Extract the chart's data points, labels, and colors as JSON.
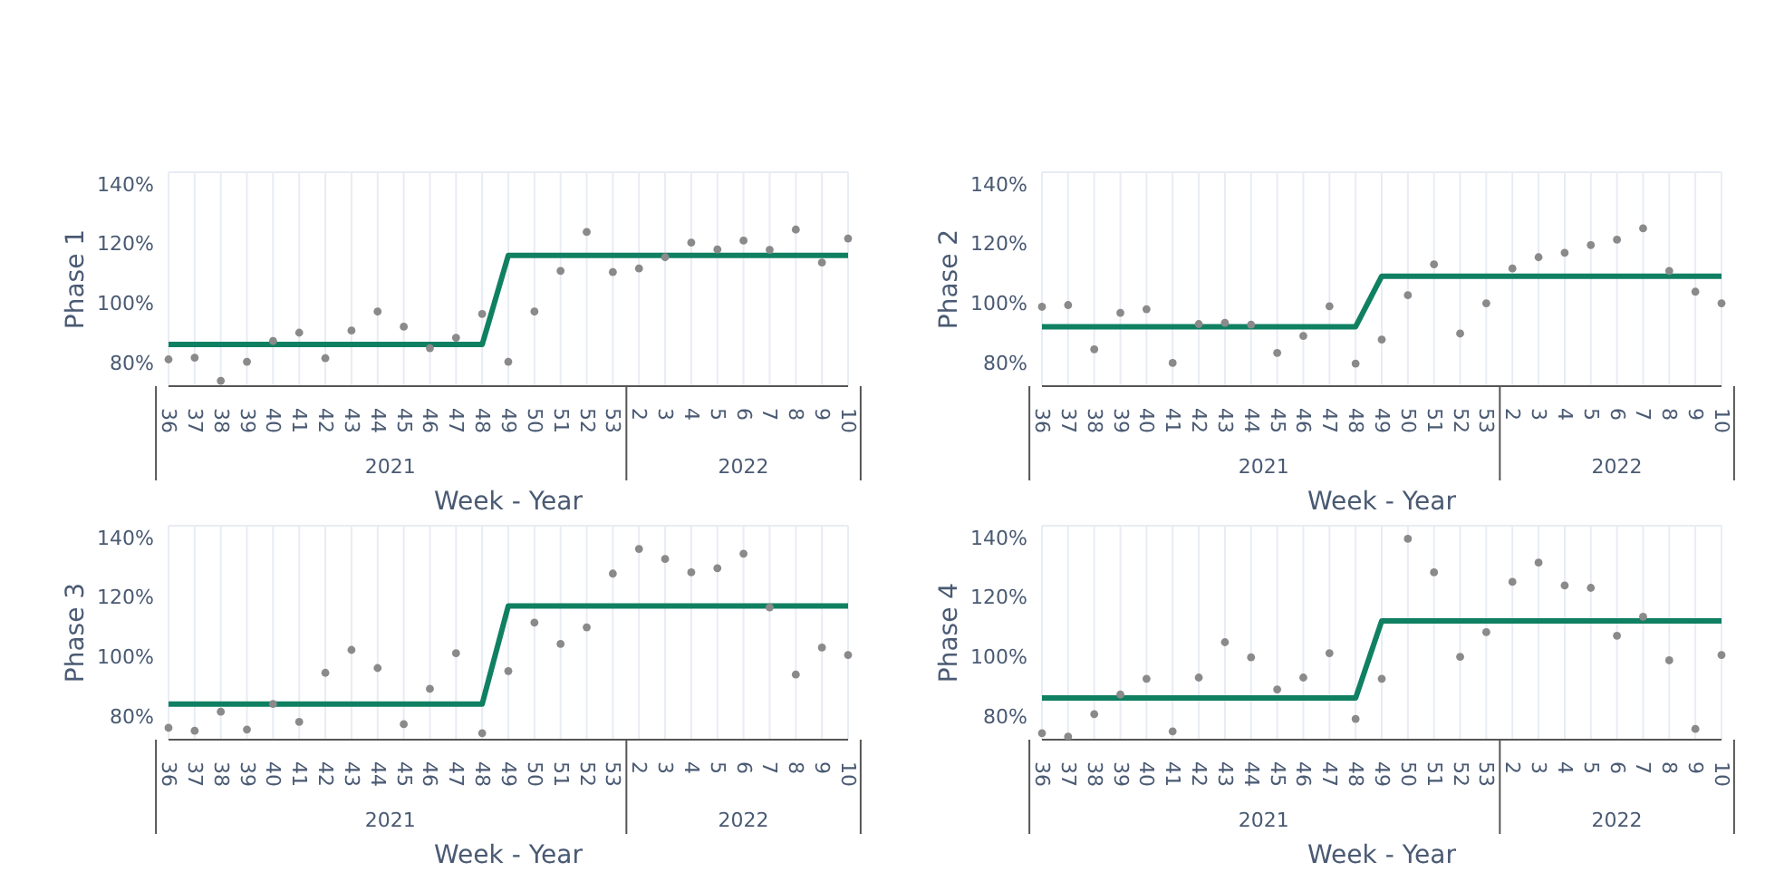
{
  "chart_data": [
    {
      "type": "scatter",
      "ylabel": "Phase 1",
      "xlabel": "Week - Year",
      "categories": [
        "36",
        "37",
        "38",
        "39",
        "40",
        "41",
        "42",
        "43",
        "44",
        "45",
        "46",
        "47",
        "48",
        "49",
        "50",
        "51",
        "52",
        "53",
        "2",
        "3",
        "4",
        "5",
        "6",
        "7",
        "8",
        "9",
        "10"
      ],
      "ylim": [
        72,
        144
      ],
      "yticks": [
        {
          "value": 80,
          "label": "80%"
        },
        {
          "value": 100,
          "label": "100%"
        },
        {
          "value": 120,
          "label": "120%"
        },
        {
          "value": 140,
          "label": "140%"
        }
      ],
      "grid": true,
      "annotations": [
        "2021",
        "2022"
      ],
      "series": [
        {
          "type": "line",
          "color": "#108062",
          "marker": "none",
          "values": [
            86,
            86,
            86,
            86,
            86,
            86,
            86,
            86,
            86,
            86,
            86,
            86,
            86,
            116,
            116,
            116,
            116,
            116,
            116,
            116,
            116,
            116,
            116,
            116,
            116,
            116,
            116
          ]
        },
        {
          "type": "scatter",
          "color": "#8a8a8a",
          "marker": "circle",
          "values": [
            81,
            81.6,
            73.8,
            80.2,
            87.2,
            90,
            81.4,
            90.7,
            97.1,
            92,
            84.8,
            88.3,
            96.3,
            80.2,
            97.1,
            110.8,
            123.9,
            110.4,
            111.6,
            115.4,
            120.3,
            118,
            121,
            117.9,
            124.7,
            113.6,
            121.7
          ]
        }
      ]
    },
    {
      "type": "scatter",
      "ylabel": "Phase 2",
      "xlabel": "Week - Year",
      "categories": [
        "36",
        "37",
        "38",
        "39",
        "40",
        "41",
        "42",
        "43",
        "44",
        "45",
        "46",
        "47",
        "48",
        "49",
        "50",
        "51",
        "52",
        "53",
        "2",
        "3",
        "4",
        "5",
        "6",
        "7",
        "8",
        "9",
        "10"
      ],
      "ylim": [
        72,
        144
      ],
      "yticks": [
        {
          "value": 80,
          "label": "80%"
        },
        {
          "value": 100,
          "label": "100%"
        },
        {
          "value": 120,
          "label": "120%"
        },
        {
          "value": 140,
          "label": "140%"
        }
      ],
      "grid": true,
      "annotations": [
        "2021",
        "2022"
      ],
      "series": [
        {
          "type": "line",
          "color": "#108062",
          "marker": "none",
          "values": [
            92,
            92,
            92,
            92,
            92,
            92,
            92,
            92,
            92,
            92,
            92,
            92,
            92,
            109,
            109,
            109,
            109,
            109,
            109,
            109,
            109,
            109,
            109,
            109,
            109,
            109,
            109
          ]
        },
        {
          "type": "scatter",
          "color": "#8a8a8a",
          "marker": "circle",
          "values": [
            98.7,
            99.3,
            84.4,
            96.7,
            97.9,
            79.8,
            92.9,
            93.3,
            92.7,
            83.2,
            88.9,
            98.9,
            79.6,
            87.7,
            102.6,
            113,
            89.7,
            99.9,
            111.6,
            115.4,
            116.9,
            119.5,
            121.3,
            125.1,
            110.8,
            103.8,
            99.9
          ]
        }
      ]
    },
    {
      "type": "scatter",
      "ylabel": "Phase 3",
      "xlabel": "Week - Year",
      "categories": [
        "36",
        "37",
        "38",
        "39",
        "40",
        "41",
        "42",
        "43",
        "44",
        "45",
        "46",
        "47",
        "48",
        "49",
        "50",
        "51",
        "52",
        "53",
        "2",
        "3",
        "4",
        "5",
        "6",
        "7",
        "8",
        "9",
        "10"
      ],
      "ylim": [
        72,
        144
      ],
      "yticks": [
        {
          "value": 80,
          "label": "80%"
        },
        {
          "value": 100,
          "label": "100%"
        },
        {
          "value": 120,
          "label": "120%"
        },
        {
          "value": 140,
          "label": "140%"
        }
      ],
      "grid": true,
      "annotations": [
        "2021",
        "2022"
      ],
      "series": [
        {
          "type": "line",
          "color": "#108062",
          "marker": "none",
          "values": [
            84,
            84,
            84,
            84,
            84,
            84,
            84,
            84,
            84,
            84,
            84,
            84,
            84,
            117,
            117,
            117,
            117,
            117,
            117,
            117,
            117,
            117,
            117,
            117,
            117,
            117,
            117
          ]
        },
        {
          "type": "scatter",
          "color": "#8a8a8a",
          "marker": "circle",
          "values": [
            76,
            75,
            81.4,
            75.4,
            84,
            78,
            94.5,
            102.2,
            96.1,
            77.2,
            89.1,
            101.1,
            74.2,
            95.1,
            111.4,
            104.2,
            109.8,
            127.9,
            136.2,
            132.8,
            128.3,
            129.7,
            134.6,
            116.5,
            93.9,
            103,
            100.5
          ]
        }
      ]
    },
    {
      "type": "scatter",
      "ylabel": "Phase 4",
      "xlabel": "Week - Year",
      "categories": [
        "36",
        "37",
        "38",
        "39",
        "40",
        "41",
        "42",
        "43",
        "44",
        "45",
        "46",
        "47",
        "48",
        "49",
        "50",
        "51",
        "52",
        "53",
        "2",
        "3",
        "4",
        "5",
        "6",
        "7",
        "8",
        "9",
        "10"
      ],
      "ylim": [
        72,
        144
      ],
      "yticks": [
        {
          "value": 80,
          "label": "80%"
        },
        {
          "value": 100,
          "label": "100%"
        },
        {
          "value": 120,
          "label": "120%"
        },
        {
          "value": 140,
          "label": "140%"
        }
      ],
      "grid": true,
      "annotations": [
        "2021",
        "2022"
      ],
      "series": [
        {
          "type": "line",
          "color": "#108062",
          "marker": "none",
          "values": [
            86,
            86,
            86,
            86,
            86,
            86,
            86,
            86,
            86,
            86,
            86,
            86,
            86,
            112,
            112,
            112,
            112,
            112,
            112,
            112,
            112,
            112,
            112,
            112,
            112,
            112,
            112
          ]
        },
        {
          "type": "scatter",
          "color": "#8a8a8a",
          "marker": "circle",
          "values": [
            74.2,
            73,
            80.6,
            87.2,
            92.5,
            74.8,
            92.9,
            104.8,
            99.7,
            88.9,
            92.9,
            101.1,
            79,
            92.5,
            139.6,
            128.3,
            99.9,
            108.2,
            125.1,
            131.6,
            123.9,
            123.1,
            107,
            113.4,
            98.7,
            75.6,
            100.5
          ]
        }
      ]
    }
  ]
}
